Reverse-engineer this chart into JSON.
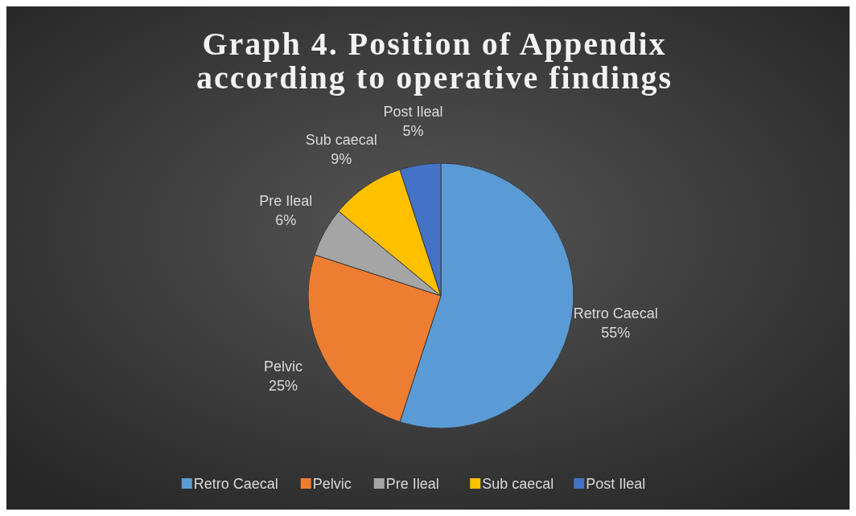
{
  "chart_data": {
    "type": "pie",
    "title": "Graph 4. Position of Appendix according to operative findings",
    "categories": [
      "Retro Caecal",
      "Pelvic",
      "Pre Ileal",
      "Sub caecal",
      "Post Ileal"
    ],
    "values": [
      55,
      25,
      6,
      9,
      5
    ],
    "colors": [
      "#5b9bd5",
      "#ed7d31",
      "#a5a5a5",
      "#ffc000",
      "#4472c4"
    ],
    "value_labels": [
      "55%",
      "25%",
      "6%",
      "9%",
      "5%"
    ],
    "legend": "bottom"
  }
}
